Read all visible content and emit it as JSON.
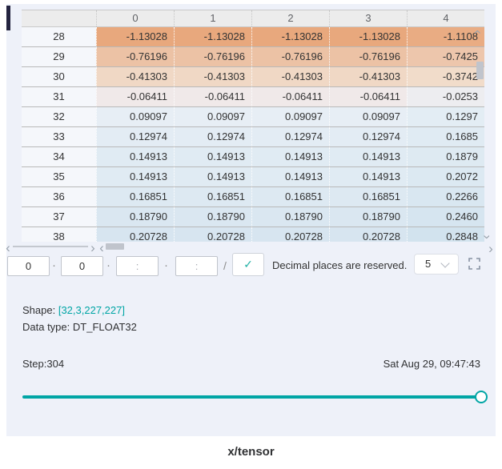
{
  "title": "x/tensor",
  "accent_color": "#00a5a5",
  "table": {
    "corner_header": "",
    "col_headers": [
      "0",
      "1",
      "2",
      "3",
      "4"
    ],
    "rows": [
      {
        "index": "28",
        "values": [
          "-1.13028",
          "-1.13028",
          "-1.13028",
          "-1.13028",
          "-1.1108"
        ],
        "cell_color": "#e8a87d",
        "last_cell_color": "#e9ac83"
      },
      {
        "index": "29",
        "values": [
          "-0.76196",
          "-0.76196",
          "-0.76196",
          "-0.76196",
          "-0.7425"
        ],
        "cell_color": "#ecc2a5",
        "last_cell_color": "#edc6ac"
      },
      {
        "index": "30",
        "values": [
          "-0.41303",
          "-0.41303",
          "-0.41303",
          "-0.41303",
          "-0.3742"
        ],
        "cell_color": "#f0d8c5",
        "last_cell_color": "#f1dcca"
      },
      {
        "index": "31",
        "values": [
          "-0.06411",
          "-0.06411",
          "-0.06411",
          "-0.06411",
          "-0.0253"
        ],
        "cell_color": "#f0e9e9",
        "last_cell_color": "#ededf0"
      },
      {
        "index": "32",
        "values": [
          "0.09097",
          "0.09097",
          "0.09097",
          "0.09097",
          "0.1297"
        ],
        "cell_color": "#e7eef5",
        "last_cell_color": "#e3edf4"
      },
      {
        "index": "33",
        "values": [
          "0.12974",
          "0.12974",
          "0.12974",
          "0.12974",
          "0.1685"
        ],
        "cell_color": "#e3ecf4",
        "last_cell_color": "#e0ebf3"
      },
      {
        "index": "34",
        "values": [
          "0.14913",
          "0.14913",
          "0.14913",
          "0.14913",
          "0.1879"
        ],
        "cell_color": "#e0ebf3",
        "last_cell_color": "#deeaf2"
      },
      {
        "index": "35",
        "values": [
          "0.14913",
          "0.14913",
          "0.14913",
          "0.14913",
          "0.2072"
        ],
        "cell_color": "#e0ebf3",
        "last_cell_color": "#dce9f2"
      },
      {
        "index": "36",
        "values": [
          "0.16851",
          "0.16851",
          "0.16851",
          "0.16851",
          "0.2266"
        ],
        "cell_color": "#dde9f2",
        "last_cell_color": "#d9e7f1"
      },
      {
        "index": "37",
        "values": [
          "0.18790",
          "0.18790",
          "0.18790",
          "0.18790",
          "0.2460"
        ],
        "cell_color": "#dae7f1",
        "last_cell_color": "#d6e5f0"
      },
      {
        "index": "38",
        "values": [
          "0.20728",
          "0.20728",
          "0.20728",
          "0.20728",
          "0.2848"
        ],
        "cell_color": "#d7e5f0",
        "last_cell_color": "#d2e3ee"
      }
    ]
  },
  "scrollbar": {
    "chevron_left": "‹",
    "chevron_right": "›"
  },
  "controls": {
    "dims": [
      "0",
      "0",
      ":",
      ":"
    ],
    "separator": "·",
    "slash": "/",
    "check_icon": "✓",
    "decimal_label": "Decimal places are reserved.",
    "decimal_value": "5"
  },
  "info": {
    "shape_label": "Shape:",
    "shape_value": "[32,3,227,227]",
    "dtype_label": "Data type:",
    "dtype_value": "DT_FLOAT32",
    "step_label": "Step:304",
    "timestamp": "Sat Aug 29, 09:47:43"
  },
  "slider": {
    "percent": 98.8
  }
}
